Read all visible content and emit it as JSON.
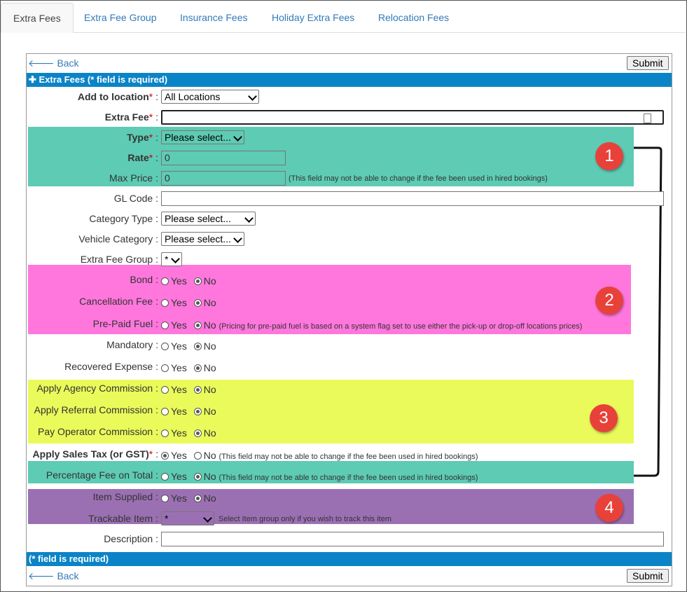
{
  "tabs": [
    {
      "label": "Extra Fees"
    },
    {
      "label": "Extra Fee Group"
    },
    {
      "label": "Insurance Fees"
    },
    {
      "label": "Holiday Extra Fees"
    },
    {
      "label": "Relocation Fees"
    }
  ],
  "toolbar": {
    "back_label": "Back",
    "submit_label": "Submit"
  },
  "header_bar": {
    "title": "Extra Fees (* field is required)"
  },
  "footer_bar": {
    "title": "(* field is required)"
  },
  "radio": {
    "yes": "Yes",
    "no": "No"
  },
  "fields": {
    "add_to_location": {
      "label": "Add to location",
      "value": "All Locations"
    },
    "extra_fee": {
      "label": "Extra Fee",
      "value": ""
    },
    "type": {
      "label": "Type",
      "value": "Please select..."
    },
    "rate": {
      "label": "Rate",
      "value": "0"
    },
    "max_price": {
      "label": "Max Price",
      "value": "0",
      "note": "(This field may not be able to change if the fee been used in hired bookings)"
    },
    "gl_code": {
      "label": "GL Code",
      "value": ""
    },
    "category_type": {
      "label": "Category Type",
      "value": "Please select..."
    },
    "vehicle_category": {
      "label": "Vehicle Category",
      "value": "Please select..."
    },
    "extra_fee_group": {
      "label": "Extra Fee Group",
      "value": "*"
    },
    "bond": {
      "label": "Bond",
      "selected": "No"
    },
    "cancellation_fee": {
      "label": "Cancellation Fee",
      "selected": "No"
    },
    "pre_paid_fuel": {
      "label": "Pre-Paid Fuel",
      "selected": "No",
      "note": "(Pricing for pre-paid fuel is based on a system flag set to use either the pick-up or drop-off locations prices)"
    },
    "mandatory": {
      "label": "Mandatory",
      "selected": "No"
    },
    "recovered_expense": {
      "label": "Recovered Expense",
      "selected": "No"
    },
    "apply_agency_commission": {
      "label": "Apply Agency Commission",
      "selected": "No"
    },
    "apply_referral_commission": {
      "label": "Apply Referral Commission",
      "selected": "No"
    },
    "pay_operator_commission": {
      "label": "Pay Operator Commission",
      "selected": "No"
    },
    "apply_sales_tax": {
      "label": "Apply Sales Tax (or GST)",
      "selected": "Yes",
      "note": "(This field may not be able to change if the fee been used in hired bookings)"
    },
    "percentage_fee_on_total": {
      "label": "Percentage Fee on Total",
      "selected": "No",
      "note": "(This field may not be able to change if the fee been used in hired bookings)"
    },
    "item_supplied": {
      "label": "Item Supplied",
      "selected": "No"
    },
    "trackable_item": {
      "label": "Trackable Item",
      "value": "*",
      "note": "Select Item group only if you wish to track this item"
    },
    "description": {
      "label": "Description",
      "value": ""
    }
  },
  "annotations": [
    {
      "number": "1",
      "color": "#5ecbb4"
    },
    {
      "number": "2",
      "color": "#ff77dd"
    },
    {
      "number": "3",
      "color": "#eafa5a"
    },
    {
      "number": "4",
      "color": "#9b70b3"
    }
  ],
  "colors": {
    "bar": "#0b84c7",
    "link": "#337ab7",
    "badge": "#e8413a",
    "required": "#cc0000"
  }
}
